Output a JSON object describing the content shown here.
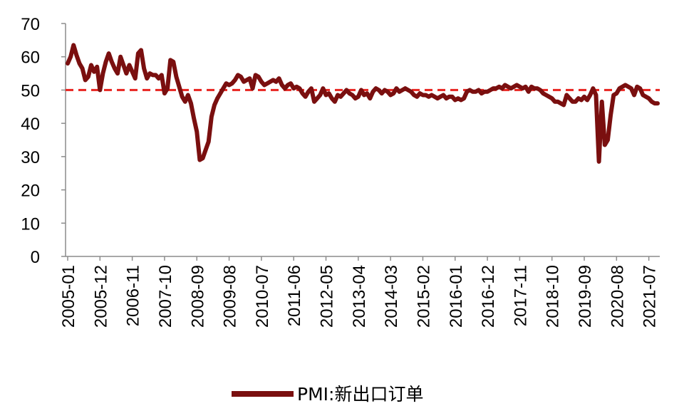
{
  "chart_data": {
    "type": "line",
    "ylim": [
      0,
      70
    ],
    "yticks": [
      0,
      10,
      20,
      30,
      40,
      50,
      60,
      70
    ],
    "xtick_labels": [
      "2005-01",
      "2005-12",
      "2006-11",
      "2007-10",
      "2008-09",
      "2009-08",
      "2010-07",
      "2011-06",
      "2012-05",
      "2013-04",
      "2014-03",
      "2015-02",
      "2016-01",
      "2016-12",
      "2017-11",
      "2018-10",
      "2019-09",
      "2020-08",
      "2021-07"
    ],
    "x_start": "2005-01",
    "x_end": "2021-10",
    "reference_line": {
      "value": 50,
      "color": "#e8231f",
      "style": "dashed"
    },
    "legend_position": "bottom-center",
    "grid": false,
    "series": [
      {
        "name": "PMI:新出口订单",
        "color": "#7a0f0f",
        "points": [
          [
            "2005-01",
            58.0
          ],
          [
            "2005-02",
            60.0
          ],
          [
            "2005-03",
            63.5
          ],
          [
            "2005-04",
            60.5
          ],
          [
            "2005-05",
            58.0
          ],
          [
            "2005-06",
            56.5
          ],
          [
            "2005-07",
            53.0
          ],
          [
            "2005-08",
            54.0
          ],
          [
            "2005-09",
            57.5
          ],
          [
            "2005-10",
            55.5
          ],
          [
            "2005-11",
            57.0
          ],
          [
            "2005-12",
            50.0
          ],
          [
            "2006-01",
            55.0
          ],
          [
            "2006-02",
            58.5
          ],
          [
            "2006-03",
            61.0
          ],
          [
            "2006-04",
            58.5
          ],
          [
            "2006-05",
            56.5
          ],
          [
            "2006-06",
            55.0
          ],
          [
            "2006-07",
            60.0
          ],
          [
            "2006-08",
            57.5
          ],
          [
            "2006-09",
            55.0
          ],
          [
            "2006-10",
            57.5
          ],
          [
            "2006-11",
            55.5
          ],
          [
            "2006-12",
            53.5
          ],
          [
            "2007-01",
            61.0
          ],
          [
            "2007-02",
            62.0
          ],
          [
            "2007-03",
            56.5
          ],
          [
            "2007-04",
            53.5
          ],
          [
            "2007-05",
            55.0
          ],
          [
            "2007-06",
            54.5
          ],
          [
            "2007-07",
            54.5
          ],
          [
            "2007-08",
            53.5
          ],
          [
            "2007-09",
            54.5
          ],
          [
            "2007-10",
            49.0
          ],
          [
            "2007-11",
            50.5
          ],
          [
            "2007-12",
            59.0
          ],
          [
            "2008-01",
            58.5
          ],
          [
            "2008-02",
            54.0
          ],
          [
            "2008-03",
            51.0
          ],
          [
            "2008-04",
            48.0
          ],
          [
            "2008-05",
            46.5
          ],
          [
            "2008-06",
            48.5
          ],
          [
            "2008-07",
            46.0
          ],
          [
            "2008-08",
            41.5
          ],
          [
            "2008-09",
            37.5
          ],
          [
            "2008-10",
            29.0
          ],
          [
            "2008-11",
            29.5
          ],
          [
            "2008-12",
            32.0
          ],
          [
            "2009-01",
            34.5
          ],
          [
            "2009-02",
            42.0
          ],
          [
            "2009-03",
            45.5
          ],
          [
            "2009-04",
            47.5
          ],
          [
            "2009-05",
            49.0
          ],
          [
            "2009-06",
            50.5
          ],
          [
            "2009-07",
            52.0
          ],
          [
            "2009-08",
            51.5
          ],
          [
            "2009-09",
            52.0
          ],
          [
            "2009-10",
            53.0
          ],
          [
            "2009-11",
            54.5
          ],
          [
            "2009-12",
            54.0
          ],
          [
            "2010-01",
            52.5
          ],
          [
            "2010-02",
            53.0
          ],
          [
            "2010-03",
            53.5
          ],
          [
            "2010-04",
            50.5
          ],
          [
            "2010-05",
            54.5
          ],
          [
            "2010-06",
            54.0
          ],
          [
            "2010-07",
            52.5
          ],
          [
            "2010-08",
            51.5
          ],
          [
            "2010-09",
            52.0
          ],
          [
            "2010-10",
            52.5
          ],
          [
            "2010-11",
            53.0
          ],
          [
            "2010-12",
            52.5
          ],
          [
            "2011-01",
            53.5
          ],
          [
            "2011-02",
            51.5
          ],
          [
            "2011-03",
            50.5
          ],
          [
            "2011-04",
            51.5
          ],
          [
            "2011-05",
            52.0
          ],
          [
            "2011-06",
            50.5
          ],
          [
            "2011-07",
            51.0
          ],
          [
            "2011-08",
            50.5
          ],
          [
            "2011-09",
            49.0
          ],
          [
            "2011-10",
            48.0
          ],
          [
            "2011-11",
            49.5
          ],
          [
            "2011-12",
            50.5
          ],
          [
            "2012-01",
            46.5
          ],
          [
            "2012-02",
            47.5
          ],
          [
            "2012-03",
            48.5
          ],
          [
            "2012-04",
            50.5
          ],
          [
            "2012-05",
            48.5
          ],
          [
            "2012-06",
            49.0
          ],
          [
            "2012-07",
            47.5
          ],
          [
            "2012-08",
            46.5
          ],
          [
            "2012-09",
            48.5
          ],
          [
            "2012-10",
            48.0
          ],
          [
            "2012-11",
            49.0
          ],
          [
            "2012-12",
            50.0
          ],
          [
            "2013-01",
            49.0
          ],
          [
            "2013-02",
            48.5
          ],
          [
            "2013-03",
            47.5
          ],
          [
            "2013-04",
            48.0
          ],
          [
            "2013-05",
            50.0
          ],
          [
            "2013-06",
            48.5
          ],
          [
            "2013-07",
            49.0
          ],
          [
            "2013-08",
            47.5
          ],
          [
            "2013-09",
            49.5
          ],
          [
            "2013-10",
            50.5
          ],
          [
            "2013-11",
            50.0
          ],
          [
            "2013-12",
            49.0
          ],
          [
            "2014-01",
            50.0
          ],
          [
            "2014-02",
            49.5
          ],
          [
            "2014-03",
            48.5
          ],
          [
            "2014-04",
            49.0
          ],
          [
            "2014-05",
            50.5
          ],
          [
            "2014-06",
            49.5
          ],
          [
            "2014-07",
            50.0
          ],
          [
            "2014-08",
            50.5
          ],
          [
            "2014-09",
            50.0
          ],
          [
            "2014-10",
            49.5
          ],
          [
            "2014-11",
            48.5
          ],
          [
            "2014-12",
            48.0
          ],
          [
            "2015-01",
            49.0
          ],
          [
            "2015-02",
            48.5
          ],
          [
            "2015-03",
            48.5
          ],
          [
            "2015-04",
            48.0
          ],
          [
            "2015-05",
            48.5
          ],
          [
            "2015-06",
            48.0
          ],
          [
            "2015-07",
            47.5
          ],
          [
            "2015-08",
            48.0
          ],
          [
            "2015-09",
            48.5
          ],
          [
            "2015-10",
            47.5
          ],
          [
            "2015-11",
            48.0
          ],
          [
            "2015-12",
            48.0
          ],
          [
            "2016-01",
            47.0
          ],
          [
            "2016-02",
            47.5
          ],
          [
            "2016-03",
            47.0
          ],
          [
            "2016-04",
            47.5
          ],
          [
            "2016-05",
            49.5
          ],
          [
            "2016-06",
            50.0
          ],
          [
            "2016-07",
            49.5
          ],
          [
            "2016-08",
            49.5
          ],
          [
            "2016-09",
            50.0
          ],
          [
            "2016-10",
            49.0
          ],
          [
            "2016-11",
            49.5
          ],
          [
            "2016-12",
            49.5
          ],
          [
            "2017-01",
            50.0
          ],
          [
            "2017-02",
            50.5
          ],
          [
            "2017-03",
            50.5
          ],
          [
            "2017-04",
            51.0
          ],
          [
            "2017-05",
            50.5
          ],
          [
            "2017-06",
            51.5
          ],
          [
            "2017-07",
            51.0
          ],
          [
            "2017-08",
            50.5
          ],
          [
            "2017-09",
            51.0
          ],
          [
            "2017-10",
            51.5
          ],
          [
            "2017-11",
            51.0
          ],
          [
            "2017-12",
            50.5
          ],
          [
            "2018-01",
            51.0
          ],
          [
            "2018-02",
            49.5
          ],
          [
            "2018-03",
            51.0
          ],
          [
            "2018-04",
            50.5
          ],
          [
            "2018-05",
            50.5
          ],
          [
            "2018-06",
            50.0
          ],
          [
            "2018-07",
            49.0
          ],
          [
            "2018-08",
            48.5
          ],
          [
            "2018-09",
            48.0
          ],
          [
            "2018-10",
            47.5
          ],
          [
            "2018-11",
            46.5
          ],
          [
            "2018-12",
            46.5
          ],
          [
            "2019-01",
            46.0
          ],
          [
            "2019-02",
            45.5
          ],
          [
            "2019-03",
            48.5
          ],
          [
            "2019-04",
            47.5
          ],
          [
            "2019-05",
            46.5
          ],
          [
            "2019-06",
            46.5
          ],
          [
            "2019-07",
            47.5
          ],
          [
            "2019-08",
            47.0
          ],
          [
            "2019-09",
            48.0
          ],
          [
            "2019-10",
            47.0
          ],
          [
            "2019-11",
            48.5
          ],
          [
            "2019-12",
            50.5
          ],
          [
            "2020-01",
            48.5
          ],
          [
            "2020-02",
            28.5
          ],
          [
            "2020-03",
            46.5
          ],
          [
            "2020-04",
            33.5
          ],
          [
            "2020-05",
            35.0
          ],
          [
            "2020-06",
            42.5
          ],
          [
            "2020-07",
            48.5
          ],
          [
            "2020-08",
            49.0
          ],
          [
            "2020-09",
            50.5
          ],
          [
            "2020-10",
            51.0
          ],
          [
            "2020-11",
            51.5
          ],
          [
            "2020-12",
            51.0
          ],
          [
            "2021-01",
            50.5
          ],
          [
            "2021-02",
            48.5
          ],
          [
            "2021-03",
            51.0
          ],
          [
            "2021-04",
            50.5
          ],
          [
            "2021-05",
            48.5
          ],
          [
            "2021-06",
            48.0
          ],
          [
            "2021-07",
            47.5
          ],
          [
            "2021-08",
            46.5
          ],
          [
            "2021-09",
            46.0
          ],
          [
            "2021-10",
            46.0
          ]
        ]
      }
    ]
  }
}
